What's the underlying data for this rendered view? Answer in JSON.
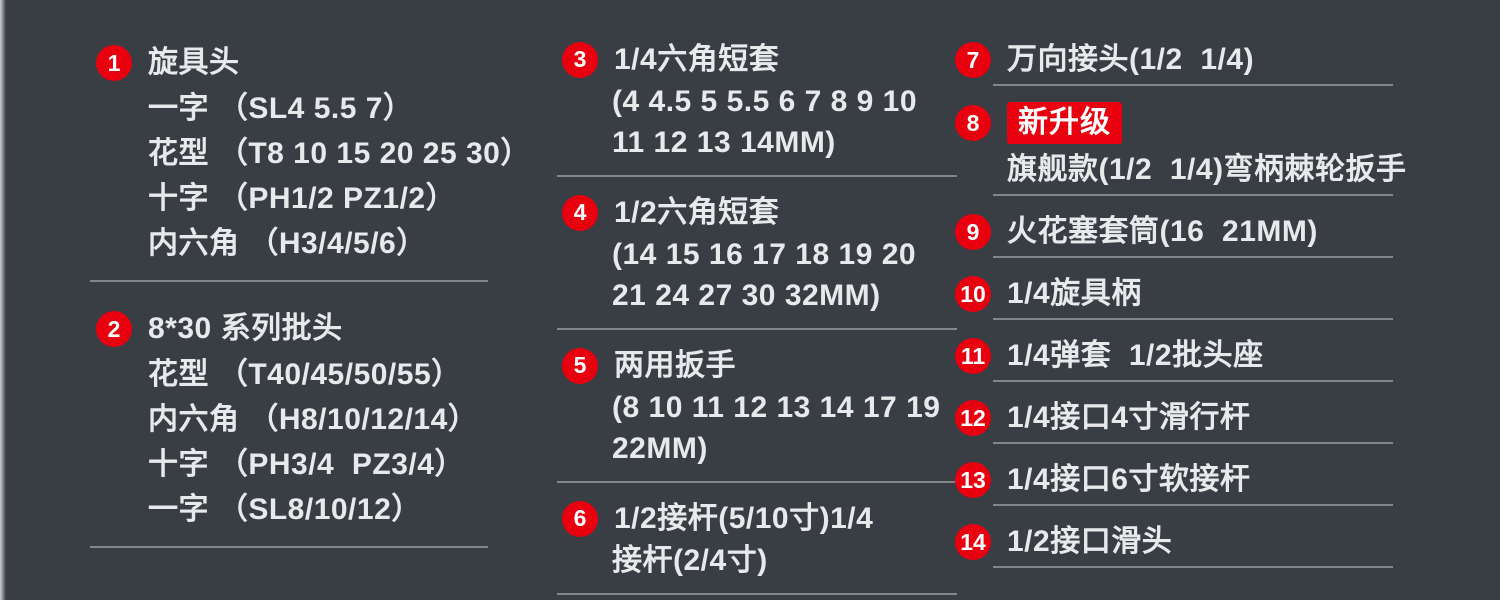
{
  "page": {
    "background_color": "#393d44",
    "text_color": "#e8e9eb",
    "accent_red": "#e8000f",
    "divider_color": "#9b9fa4"
  },
  "columns": [
    {
      "items": [
        {
          "num": "1",
          "title": "旋具头",
          "lines": [
            "一字 （SL4 5.5 7）",
            "花型 （T8 10 15 20 25 30）",
            "十字 （PH1/2 PZ1/2）",
            "内六角 （H3/4/5/6）"
          ]
        },
        {
          "num": "2",
          "title": "8*30 系列批头",
          "lines": [
            "花型 （T40/45/50/55）",
            "内六角 （H8/10/12/14）",
            "十字 （PH3/4  PZ3/4）",
            "一字 （SL8/10/12）"
          ]
        }
      ]
    },
    {
      "items": [
        {
          "num": "3",
          "title": "1/4六角短套",
          "lines": [
            "(4 4.5 5 5.5 6 7 8 9 10",
            "11 12 13 14MM)"
          ]
        },
        {
          "num": "4",
          "title": "1/2六角短套",
          "lines": [
            "(14 15 16 17 18 19 20",
            "21 24 27 30 32MM)"
          ]
        },
        {
          "num": "5",
          "title": "两用扳手",
          "lines": [
            "(8 10 11 12 13 14 17 19",
            "22MM)"
          ]
        },
        {
          "num": "6",
          "title": "1/2接杆(5/10寸)1/4",
          "lines": [
            "接杆(2/4寸)"
          ]
        }
      ]
    },
    {
      "items": [
        {
          "num": "7",
          "title": "万向接头(1/2  1/4)"
        },
        {
          "num": "8",
          "badge": "新升级",
          "title": "旗舰款(1/2  1/4)弯柄棘轮扳手"
        },
        {
          "num": "9",
          "title": "火花塞套筒(16  21MM)"
        },
        {
          "num": "10",
          "title": "1/4旋具柄"
        },
        {
          "num": "11",
          "title": "1/4弹套  1/2批头座"
        },
        {
          "num": "12",
          "title": "1/4接口4寸滑行杆"
        },
        {
          "num": "13",
          "title": "1/4接口6寸软接杆"
        },
        {
          "num": "14",
          "title": "1/2接口滑头"
        }
      ]
    }
  ]
}
